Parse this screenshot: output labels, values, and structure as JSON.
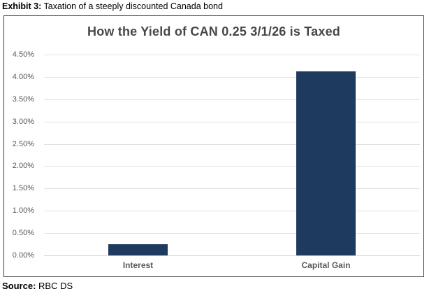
{
  "header": {
    "prefix": "Exhibit 3:",
    "text": " Taxation of a steeply discounted Canada bond"
  },
  "source": {
    "prefix": "Source:",
    "text": " RBC DS"
  },
  "chart_data": {
    "type": "bar",
    "title": "How the Yield of CAN 0.25 3/1/26 is Taxed",
    "categories": [
      "Interest",
      "Capital Gain"
    ],
    "values": [
      0.25,
      4.13
    ],
    "xlabel": "",
    "ylabel": "",
    "ylim": [
      0,
      4.5
    ],
    "ytick_step": 0.5,
    "ytick_suffix": "%",
    "ytick_decimals": 2,
    "grid": true,
    "legend": "none",
    "bar_color": "#1f3a5f",
    "gridline_color": "#e2e2e2",
    "frame_color": "#3f3f3f",
    "title_color": "#474747",
    "axis_label_color": "#595959"
  }
}
